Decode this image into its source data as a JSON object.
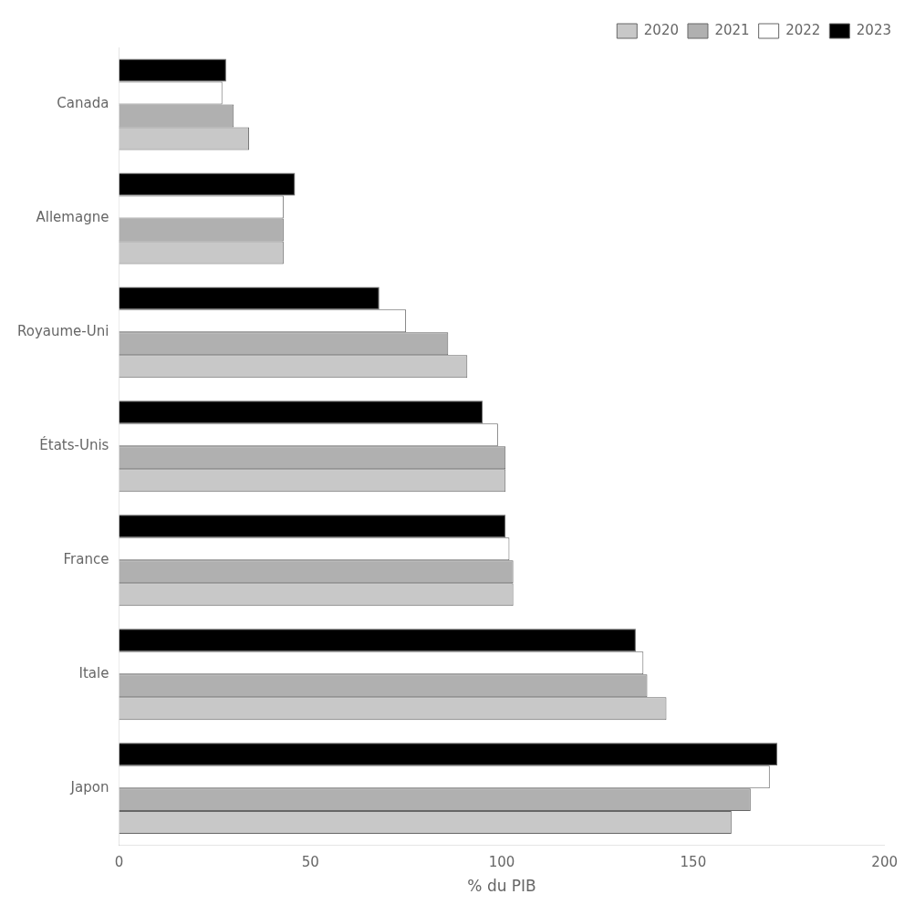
{
  "chart_data": {
    "type": "bar",
    "orientation": "horizontal",
    "categories": [
      "Japon",
      "Itale",
      "France",
      "États-Unis",
      "Royaume-Uni",
      "Allemagne",
      "Canada"
    ],
    "series": [
      {
        "name": "2020",
        "color": "#c8c8c8",
        "values": [
          160,
          143,
          103,
          101,
          91,
          43,
          34
        ]
      },
      {
        "name": "2021",
        "color": "#b0b0b0",
        "values": [
          165,
          138,
          103,
          101,
          86,
          43,
          30
        ]
      },
      {
        "name": "2022",
        "color": "#ffffff",
        "values": [
          170,
          137,
          102,
          99,
          75,
          43,
          27
        ]
      },
      {
        "name": "2023",
        "color": "#000000",
        "values": [
          172,
          135,
          101,
          95,
          68,
          46,
          28
        ]
      }
    ],
    "xlabel": "% du PIB",
    "xlim": [
      0,
      200
    ],
    "xticks": [
      0,
      50,
      100,
      150,
      200
    ],
    "grid": false,
    "legend": "upper right"
  }
}
